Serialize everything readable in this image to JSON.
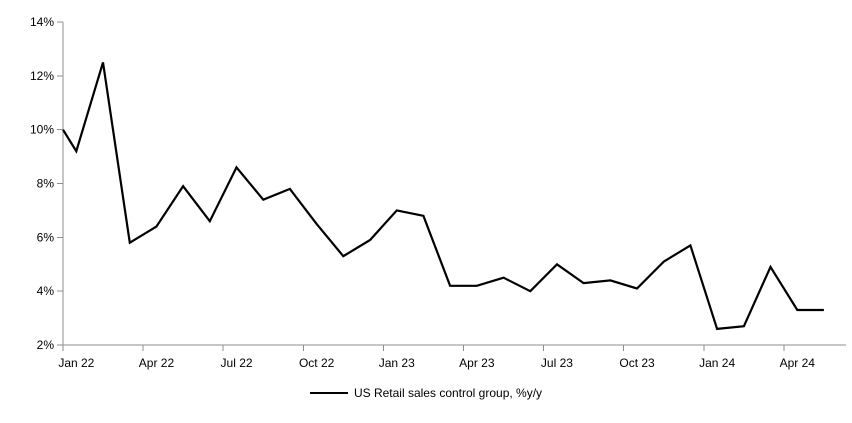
{
  "chart": {
    "legend_label": "US Retail sales control group, %y/y",
    "line_color": "#000000",
    "axis_color": "#8e8e8e",
    "text_color": "#000000"
  },
  "chart_data": {
    "type": "line",
    "title": "",
    "legend_position": "bottom-center",
    "grid": false,
    "x_categories": [
      "Jan 22",
      "Feb 22",
      "Mar 22",
      "Apr 22",
      "May 22",
      "Jun 22",
      "Jul 22",
      "Aug 22",
      "Sep 22",
      "Oct 22",
      "Nov 22",
      "Dec 22",
      "Jan 23",
      "Feb 23",
      "Mar 23",
      "Apr 23",
      "May 23",
      "Jun 23",
      "Jul 23",
      "Aug 23",
      "Sep 23",
      "Oct 23",
      "Nov 23",
      "Dec 23",
      "Jan 24",
      "Feb 24",
      "Mar 24",
      "Apr 24",
      "May 24"
    ],
    "x_tick_labels": [
      "Jan 22",
      "Apr 22",
      "Jul 22",
      "Oct 22",
      "Jan 23",
      "Apr 23",
      "Jul 23",
      "Oct 23",
      "Jan 24",
      "Apr 24"
    ],
    "x_tick_every": 3,
    "series": [
      {
        "name": "US Retail sales control group, %y/y",
        "values": [
          9.2,
          12.5,
          5.8,
          6.4,
          7.9,
          6.6,
          8.6,
          7.4,
          7.8,
          6.5,
          5.3,
          5.9,
          7.0,
          6.8,
          4.2,
          4.2,
          4.5,
          4.0,
          5.0,
          4.3,
          4.4,
          4.1,
          5.1,
          5.7,
          2.6,
          2.7,
          4.9,
          3.3,
          3.3
        ]
      }
    ],
    "left_edge_entry_value": 10.0,
    "y_axis": {
      "min": 2,
      "max": 14,
      "step": 2,
      "tick_labels": [
        "2%",
        "4%",
        "6%",
        "8%",
        "10%",
        "12%",
        "14%"
      ]
    }
  }
}
